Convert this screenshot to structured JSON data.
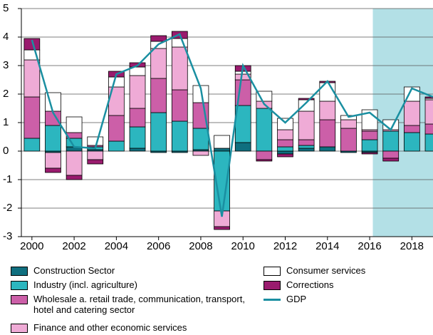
{
  "chart_data": {
    "type": "bar",
    "stacked": true,
    "x": [
      2000,
      2001,
      2002,
      2003,
      2004,
      2005,
      2006,
      2007,
      2008,
      2009,
      2010,
      2011,
      2012,
      2013,
      2014,
      2015,
      2016,
      2017,
      2018,
      2019
    ],
    "xlim": [
      1999.5,
      2019.0
    ],
    "xticks": [
      2000,
      2002,
      2004,
      2006,
      2008,
      2010,
      2012,
      2014,
      2016,
      2018
    ],
    "ylim": [
      -3,
      5
    ],
    "yticks": [
      -3,
      -2,
      -1,
      0,
      1,
      2,
      3,
      4,
      5
    ],
    "grid": true,
    "shade_xlim": [
      2016.15,
      2019.0
    ],
    "shade_color": "#b3e0e6",
    "legend": "bottom",
    "series": [
      {
        "name": "Construction Sector",
        "color": "#0f6f7f",
        "values": [
          0.0,
          -0.05,
          0.15,
          0.05,
          0.0,
          0.1,
          -0.05,
          -0.05,
          0.05,
          0.1,
          0.3,
          0.0,
          -0.1,
          0.1,
          0.15,
          -0.05,
          -0.05,
          0.0,
          0.0,
          0.0
        ]
      },
      {
        "name": "Industry (incl. agriculture)",
        "color": "#2cb6bf",
        "values": [
          0.45,
          0.9,
          0.3,
          0.1,
          0.35,
          0.75,
          1.35,
          1.05,
          0.75,
          -2.1,
          1.3,
          1.5,
          0.15,
          0.1,
          0.0,
          0.0,
          0.4,
          0.7,
          0.65,
          0.6
        ]
      },
      {
        "name": "Wholesale a. retail trade, communication, transport, hotel and catering sector",
        "color": "#cc5fa8",
        "values": [
          1.45,
          0.5,
          0.2,
          0.05,
          0.9,
          0.65,
          1.2,
          1.1,
          0.9,
          0.0,
          0.9,
          -0.3,
          0.25,
          0.2,
          0.95,
          0.8,
          0.3,
          -0.25,
          0.25,
          0.35
        ]
      },
      {
        "name": "Finance and other economic services",
        "color": "#efabd6",
        "values": [
          1.3,
          -0.55,
          -0.85,
          -0.3,
          1.0,
          1.15,
          1.05,
          1.5,
          -0.15,
          -0.55,
          0.2,
          0.25,
          0.35,
          1.0,
          0.65,
          0.3,
          0.05,
          0.05,
          0.85,
          0.85
        ]
      },
      {
        "name": "Consumer services",
        "color": "#ffffff",
        "values": [
          0.35,
          0.65,
          0.55,
          0.3,
          0.35,
          0.3,
          0.25,
          0.3,
          0.6,
          0.45,
          0.1,
          0.35,
          0.4,
          0.4,
          0.65,
          0.15,
          0.7,
          0.35,
          0.5,
          0.05
        ]
      },
      {
        "name": "Corrections",
        "color": "#9a1b6e",
        "values": [
          0.4,
          -0.15,
          -0.15,
          -0.15,
          0.2,
          0.15,
          0.2,
          0.25,
          0.0,
          -0.1,
          0.2,
          -0.05,
          -0.1,
          0.05,
          0.05,
          0.0,
          -0.05,
          -0.1,
          0.0,
          0.05
        ]
      },
      {
        "name": "GDP",
        "type": "line",
        "color": "#1a8fa1",
        "values": [
          3.9,
          1.35,
          0.15,
          0.1,
          2.7,
          3.0,
          3.75,
          4.1,
          2.2,
          -2.3,
          3.0,
          1.65,
          1.0,
          1.7,
          2.45,
          1.2,
          1.35,
          0.75,
          2.2,
          1.9
        ]
      }
    ]
  }
}
